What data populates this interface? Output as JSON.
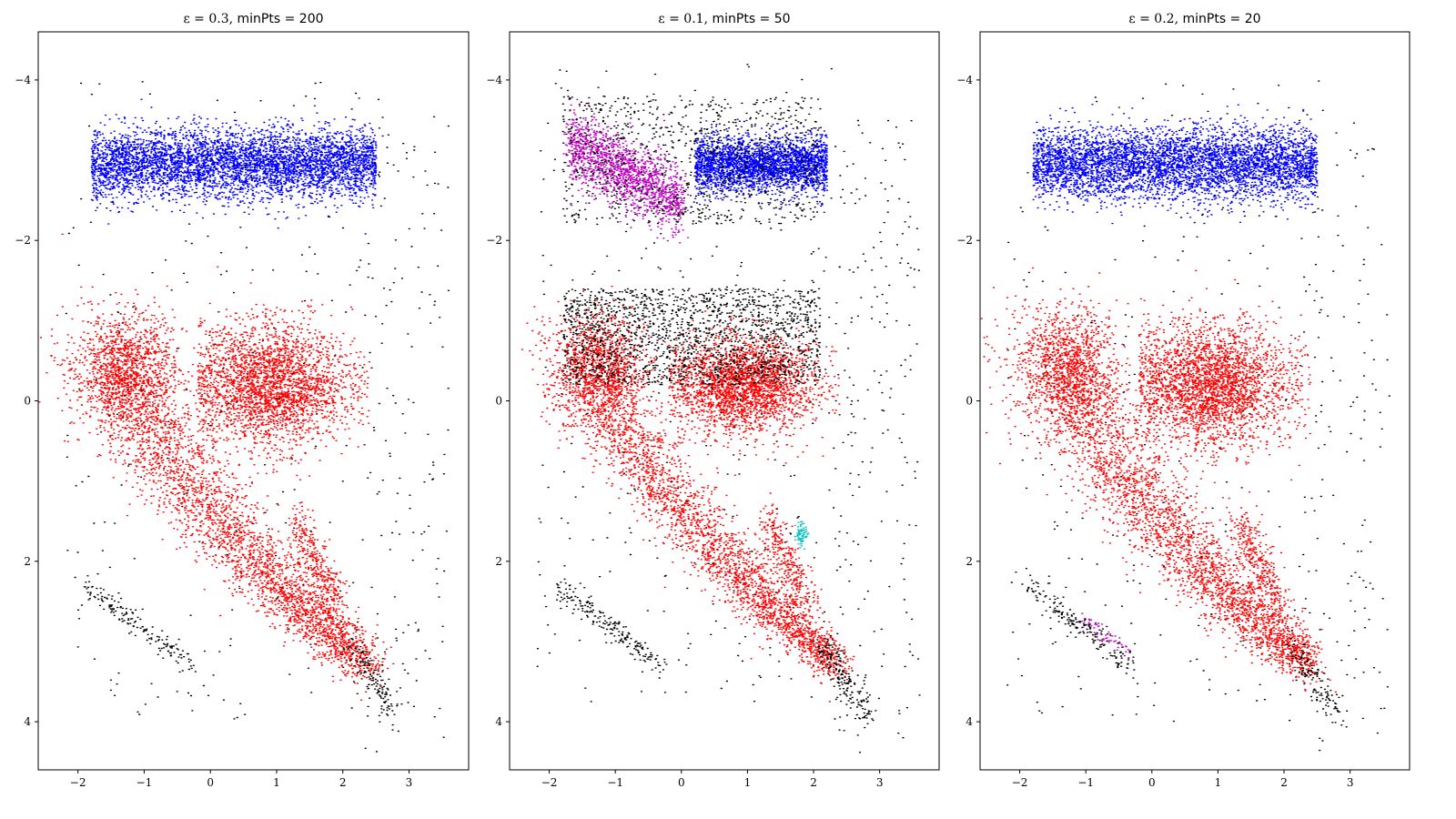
{
  "chart_data": [
    {
      "type": "scatter",
      "title": {
        "eps_label": "ε = 0.3,",
        "minpts_label": "minPts = 200"
      },
      "xlim": [
        -2.6,
        3.9
      ],
      "ylim": [
        4.6,
        -4.6
      ],
      "y_inverted": true,
      "xticks": [
        -2,
        -1,
        0,
        1,
        2,
        3
      ],
      "yticks": [
        -4,
        -2,
        0,
        2,
        4
      ],
      "grid": false,
      "legend": "none",
      "series": [
        {
          "color": "#ff0000",
          "role": "cluster",
          "pattern": "main-sequence-and-giant-branch"
        },
        {
          "color": "#0000ff",
          "role": "cluster",
          "pattern": "top-band"
        },
        {
          "color": "#000000",
          "role": "noise",
          "pattern": "scattered-with-lower-arc"
        }
      ]
    },
    {
      "type": "scatter",
      "title": {
        "eps_label": "ε = 0.1,",
        "minpts_label": "minPts = 50"
      },
      "xlim": [
        -2.6,
        3.9
      ],
      "ylim": [
        4.6,
        -4.6
      ],
      "y_inverted": true,
      "xticks": [
        -2,
        -1,
        0,
        1,
        2,
        3
      ],
      "yticks": [
        -4,
        -2,
        0,
        2,
        4
      ],
      "grid": false,
      "legend": "none",
      "series": [
        {
          "color": "#ff0000",
          "role": "cluster",
          "pattern": "main-sequence-and-giant-branch-tight"
        },
        {
          "color": "#0000ff",
          "role": "cluster",
          "pattern": "top-band-right"
        },
        {
          "color": "#c000c0",
          "role": "cluster",
          "pattern": "top-band-left"
        },
        {
          "color": "#00c0c0",
          "role": "cluster",
          "pattern": "small-clump"
        },
        {
          "color": "#000000",
          "role": "noise",
          "pattern": "dense-halo"
        }
      ]
    },
    {
      "type": "scatter",
      "title": {
        "eps_label": "ε = 0.2,",
        "minpts_label": "minPts = 20"
      },
      "xlim": [
        -2.6,
        3.9
      ],
      "ylim": [
        4.6,
        -4.6
      ],
      "y_inverted": true,
      "xticks": [
        -2,
        -1,
        0,
        1,
        2,
        3
      ],
      "yticks": [
        -4,
        -2,
        0,
        2,
        4
      ],
      "grid": false,
      "legend": "none",
      "series": [
        {
          "color": "#ff0000",
          "role": "cluster",
          "pattern": "main-sequence-and-giant-branch"
        },
        {
          "color": "#0000ff",
          "role": "cluster",
          "pattern": "top-band"
        },
        {
          "color": "#c000c0",
          "role": "cluster",
          "pattern": "lower-arc-part"
        },
        {
          "color": "#000000",
          "role": "noise",
          "pattern": "scattered-with-lower-arc"
        }
      ]
    }
  ]
}
